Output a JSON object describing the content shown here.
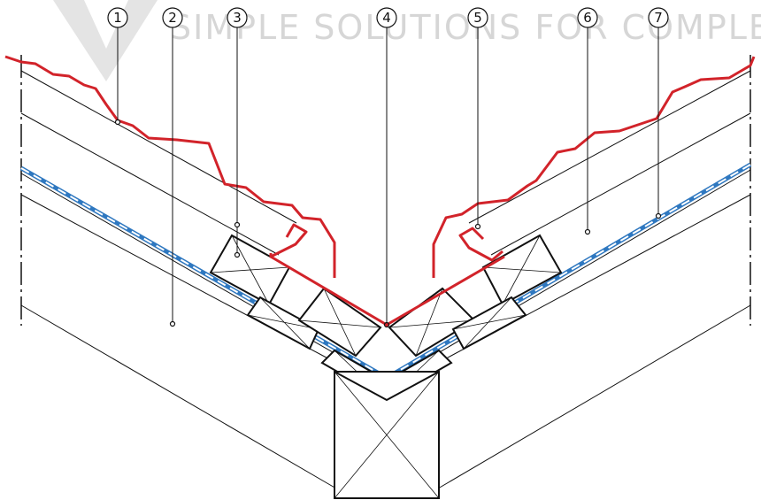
{
  "watermark": {
    "text": "SIMPLE SOLUTIONS FOR COMPLE",
    "color": "#d6d6d6"
  },
  "colors": {
    "sheet": "#d2232a",
    "membrane": "#2f78c0",
    "membrane_dash": "#ffffff",
    "lines": "#111111"
  },
  "callouts": [
    {
      "number": "1",
      "target": "metal-roof-sheet"
    },
    {
      "number": "2",
      "target": "rafter"
    },
    {
      "number": "3",
      "target": "counter-batten"
    },
    {
      "number": "4",
      "target": "valley-gutter"
    },
    {
      "number": "5",
      "target": "sheet-edge-hook"
    },
    {
      "number": "6",
      "target": "roof-batten-layer"
    },
    {
      "number": "7",
      "target": "underlay-membrane"
    }
  ]
}
